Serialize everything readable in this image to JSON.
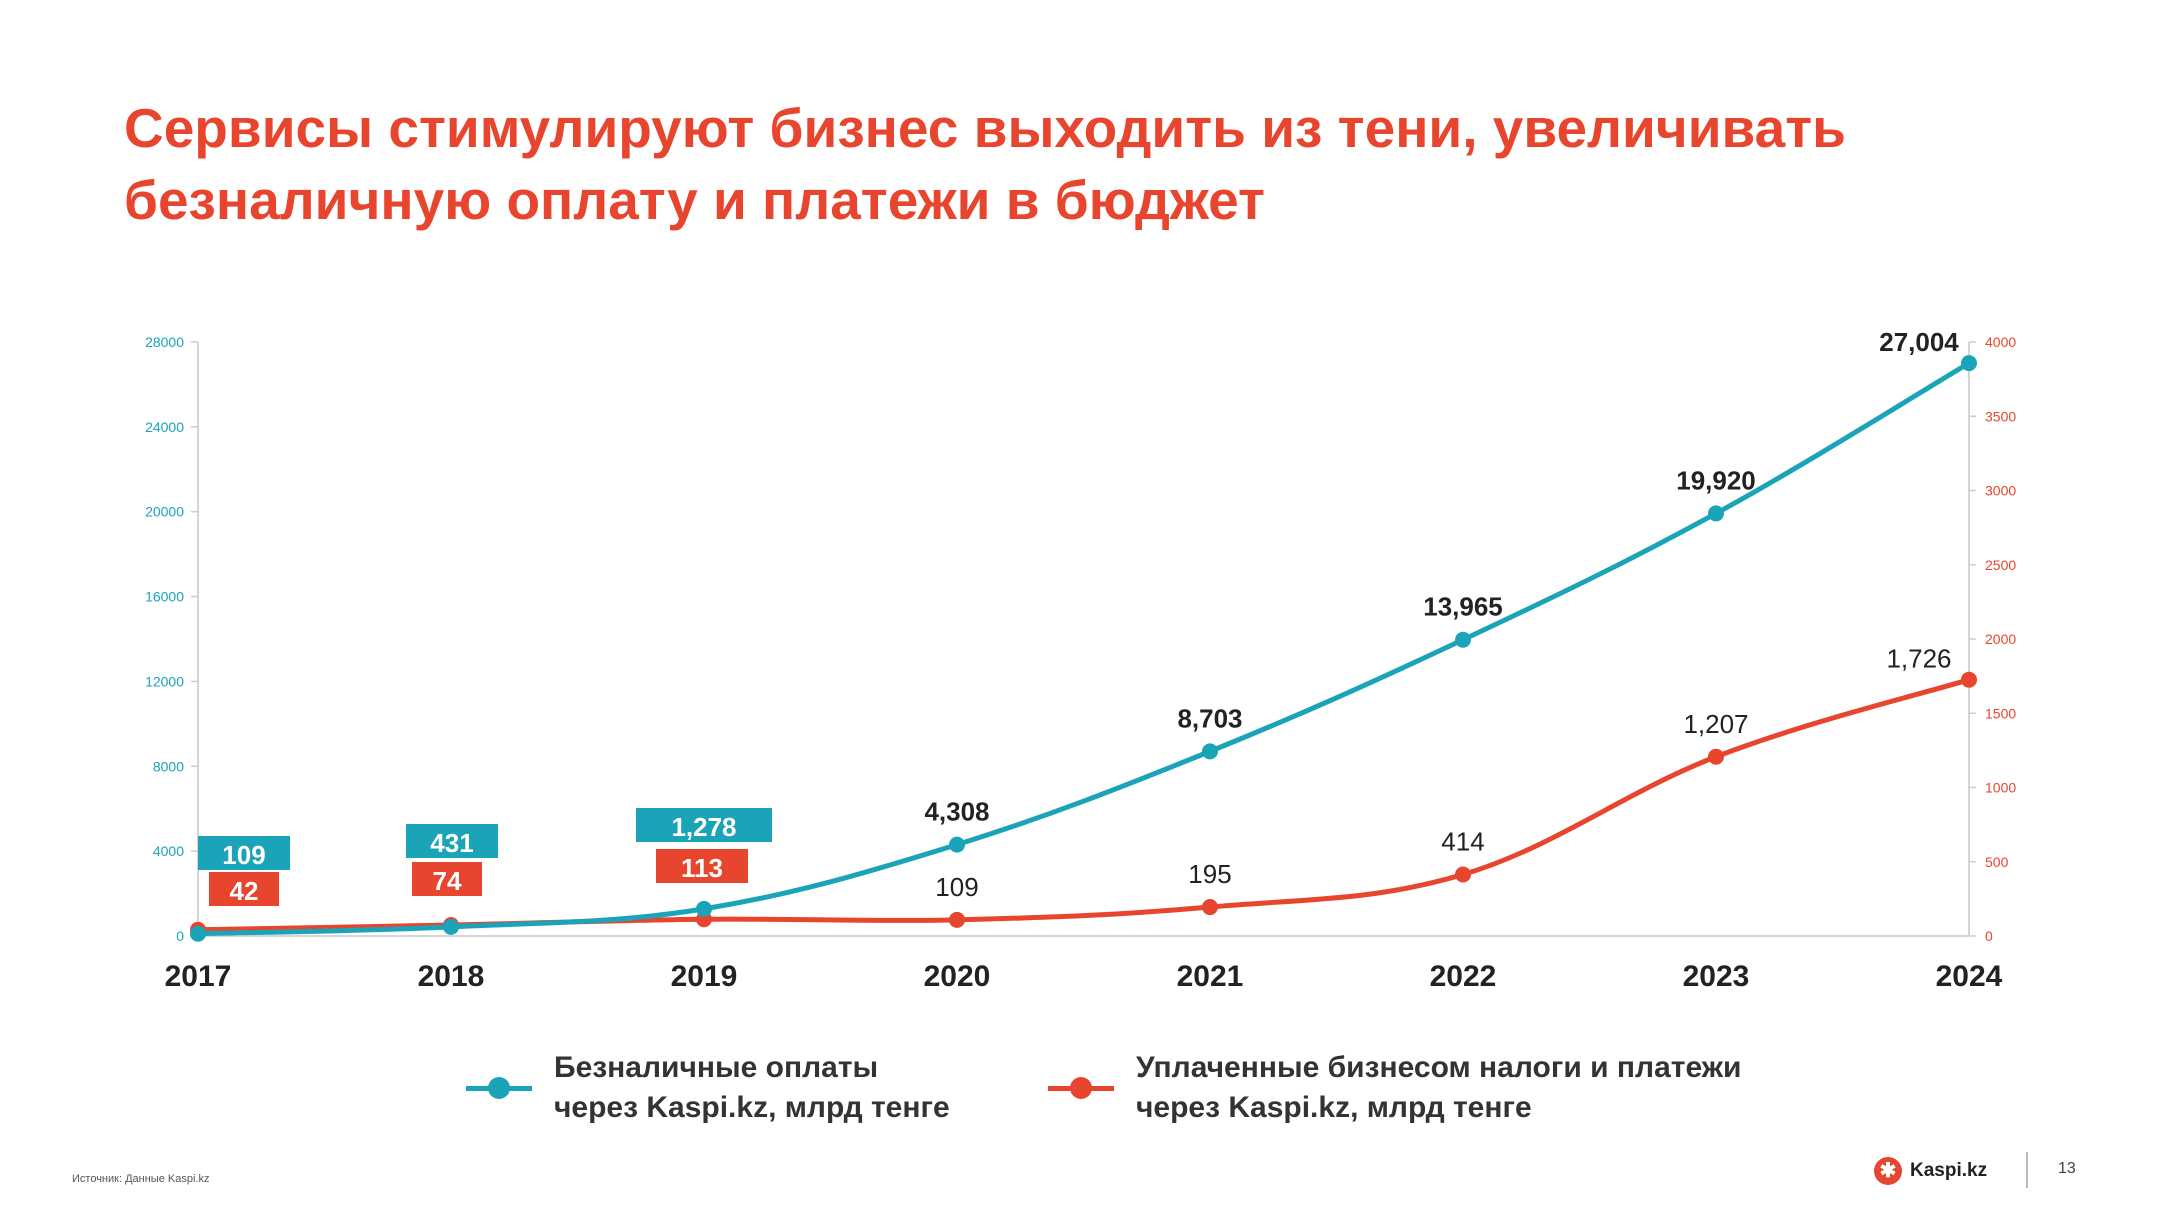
{
  "title": "Сервисы стимулируют бизнес выходить из тени, увеличивать безналичную оплату и платежи в бюджет",
  "colors": {
    "title": "#e8452f",
    "blue": "#1ba4b8",
    "red": "#e8452f"
  },
  "chart_data": {
    "type": "line",
    "categories": [
      "2017",
      "2018",
      "2019",
      "2020",
      "2021",
      "2022",
      "2023",
      "2024"
    ],
    "left_axis": {
      "range": [
        0,
        28000
      ],
      "ticks": [
        "0",
        "4000",
        "8000",
        "12000",
        "16000",
        "20000",
        "24000",
        "28000"
      ],
      "tick_values": [
        0,
        4000,
        8000,
        12000,
        16000,
        20000,
        24000,
        28000
      ]
    },
    "right_axis": {
      "range": [
        0,
        4000
      ],
      "ticks": [
        "0",
        "500",
        "1000",
        "1500",
        "2000",
        "2500",
        "3000",
        "3500",
        "4000"
      ],
      "tick_values": [
        0,
        500,
        1000,
        1500,
        2000,
        2500,
        3000,
        3500,
        4000
      ]
    },
    "grid": false,
    "legend_placement": "bottom",
    "series": [
      {
        "name": "Безналичные оплаты через Kaspi.kz, млрд тенге",
        "legend_lines": [
          "Безналичные оплаты",
          "через Kaspi.kz, млрд тенге"
        ],
        "axis": "left",
        "color": "#1ba4b8",
        "values": [
          109,
          431,
          1278,
          4308,
          8703,
          13965,
          19920,
          27004
        ],
        "labels": [
          "109",
          "431",
          "1,278",
          "4,308",
          "8,703",
          "13,965",
          "19,920",
          "27,004"
        ]
      },
      {
        "name": "Уплаченные бизнесом налоги и платежи через Kaspi.kz, млрд тенге",
        "legend_lines": [
          "Уплаченные бизнесом налоги и платежи",
          "через Kaspi.kz, млрд тенге"
        ],
        "axis": "right",
        "color": "#e8452f",
        "values": [
          42,
          74,
          113,
          109,
          195,
          414,
          1207,
          1726
        ],
        "labels": [
          "42",
          "74",
          "113",
          "109",
          "195",
          "414",
          "1,207",
          "1,726"
        ]
      }
    ]
  },
  "footer": {
    "source": "Источник: Данные Kaspi.kz",
    "logo": "Kaspi.kz",
    "page": "13"
  }
}
